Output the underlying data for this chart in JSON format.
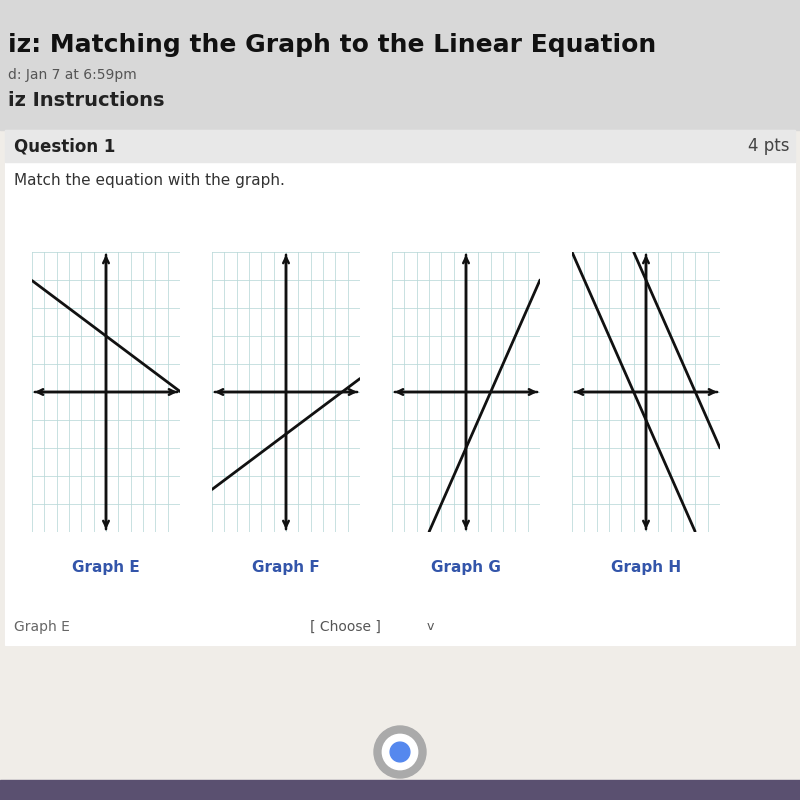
{
  "page_bg": "#f0ede8",
  "header_bg": "#d8d8d8",
  "question_bg": "#ffffff",
  "question_header_bg": "#e8e8e8",
  "title_text": "iz: Matching the Graph to the Linear Equation",
  "subtitle_text": "d: Jan 7 at 6:59pm",
  "section_text": "iz Instructions",
  "question_label": "Question 1",
  "pts_label": "4 pts",
  "instruction_text": "Match the equation with the graph.",
  "graph_labels": [
    "Graph E",
    "Graph F",
    "Graph G",
    "Graph H"
  ],
  "bottom_label": "Graph E",
  "bottom_choose": "[ Choose ]",
  "grid_color": "#b8d8d8",
  "axis_color": "#111111",
  "line_color": "#111111",
  "graph_E": {
    "slope": -0.33,
    "intercept": 2.0
  },
  "graph_F": {
    "slope": 0.33,
    "intercept": -1.5
  },
  "graph_G": {
    "slope": 1.0,
    "intercept": -2.0
  },
  "graph_H": {
    "lines": [
      {
        "slope": -1.0,
        "intercept": 4.0
      },
      {
        "slope": -1.0,
        "intercept": -1.0
      }
    ]
  },
  "xlim": [
    -6,
    6
  ],
  "ylim": [
    -5,
    5
  ],
  "label_color": "#3355aa",
  "chrome_color": "#888888"
}
